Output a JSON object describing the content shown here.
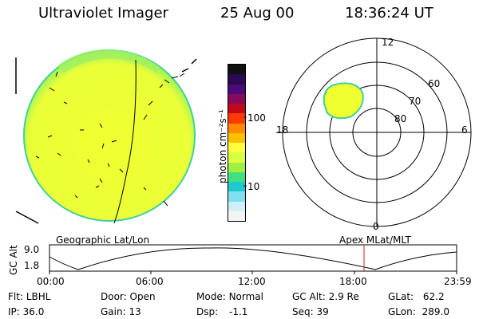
{
  "header": {
    "title": "Ultraviolet Imager",
    "date": "25 Aug 00",
    "time": "18:36:24 UT"
  },
  "colorbar": {
    "unit_label": "photon cm⁻²s⁻¹",
    "ticks": [
      "100",
      "10"
    ],
    "colors": [
      "#101010",
      "#2a0a50",
      "#4a0a7a",
      "#8a0a5a",
      "#c00a1a",
      "#ff3a00",
      "#ff8a00",
      "#ffc000",
      "#ffff40",
      "#d8ff40",
      "#a0f040",
      "#40e080",
      "#20c8d0",
      "#80e0f0",
      "#d0f0f8",
      "#f4f4f4"
    ]
  },
  "polar": {
    "labels": {
      "top": "12",
      "bottom": "0",
      "left": "18",
      "right": "6"
    },
    "rings": [
      "60",
      "70",
      "80"
    ]
  },
  "timeline": {
    "left_caption": "Geographic Lat/Lon",
    "right_caption": "Apex MLat/MLT",
    "axis_label": "GC Alt",
    "y_ticks": [
      "9.0",
      "1.8"
    ],
    "x_ticks": [
      "00:00",
      "06:00",
      "12:00",
      "18:00",
      "23:59"
    ],
    "marker_color": "#cc2222",
    "marker_time": "18:36"
  },
  "info": {
    "flt_label": "Flt:",
    "flt_value": "LBHL",
    "ip_label": "IP:",
    "ip_value": "36.0",
    "door_label": "Door:",
    "door_value": "Open",
    "gain_label": "Gain:",
    "gain_value": "13",
    "mode_label": "Mode:",
    "mode_value": "Normal",
    "dsp_label": "Dsp:",
    "dsp_value": "-1.1",
    "gcalt_label": "GC Alt:",
    "gcalt_value": "2.9 Re",
    "seq_label": "Seq:",
    "seq_value": "39",
    "glat_label": "GLat:",
    "glat_value": "62.2",
    "glon_label": "GLon:",
    "glon_value": "289.0"
  },
  "colors": {
    "disk_fill": "#f0ff30",
    "disk_edge": "#40d0a0",
    "disk_limb": "#90f060",
    "oval_fill": "#f0ff30"
  }
}
